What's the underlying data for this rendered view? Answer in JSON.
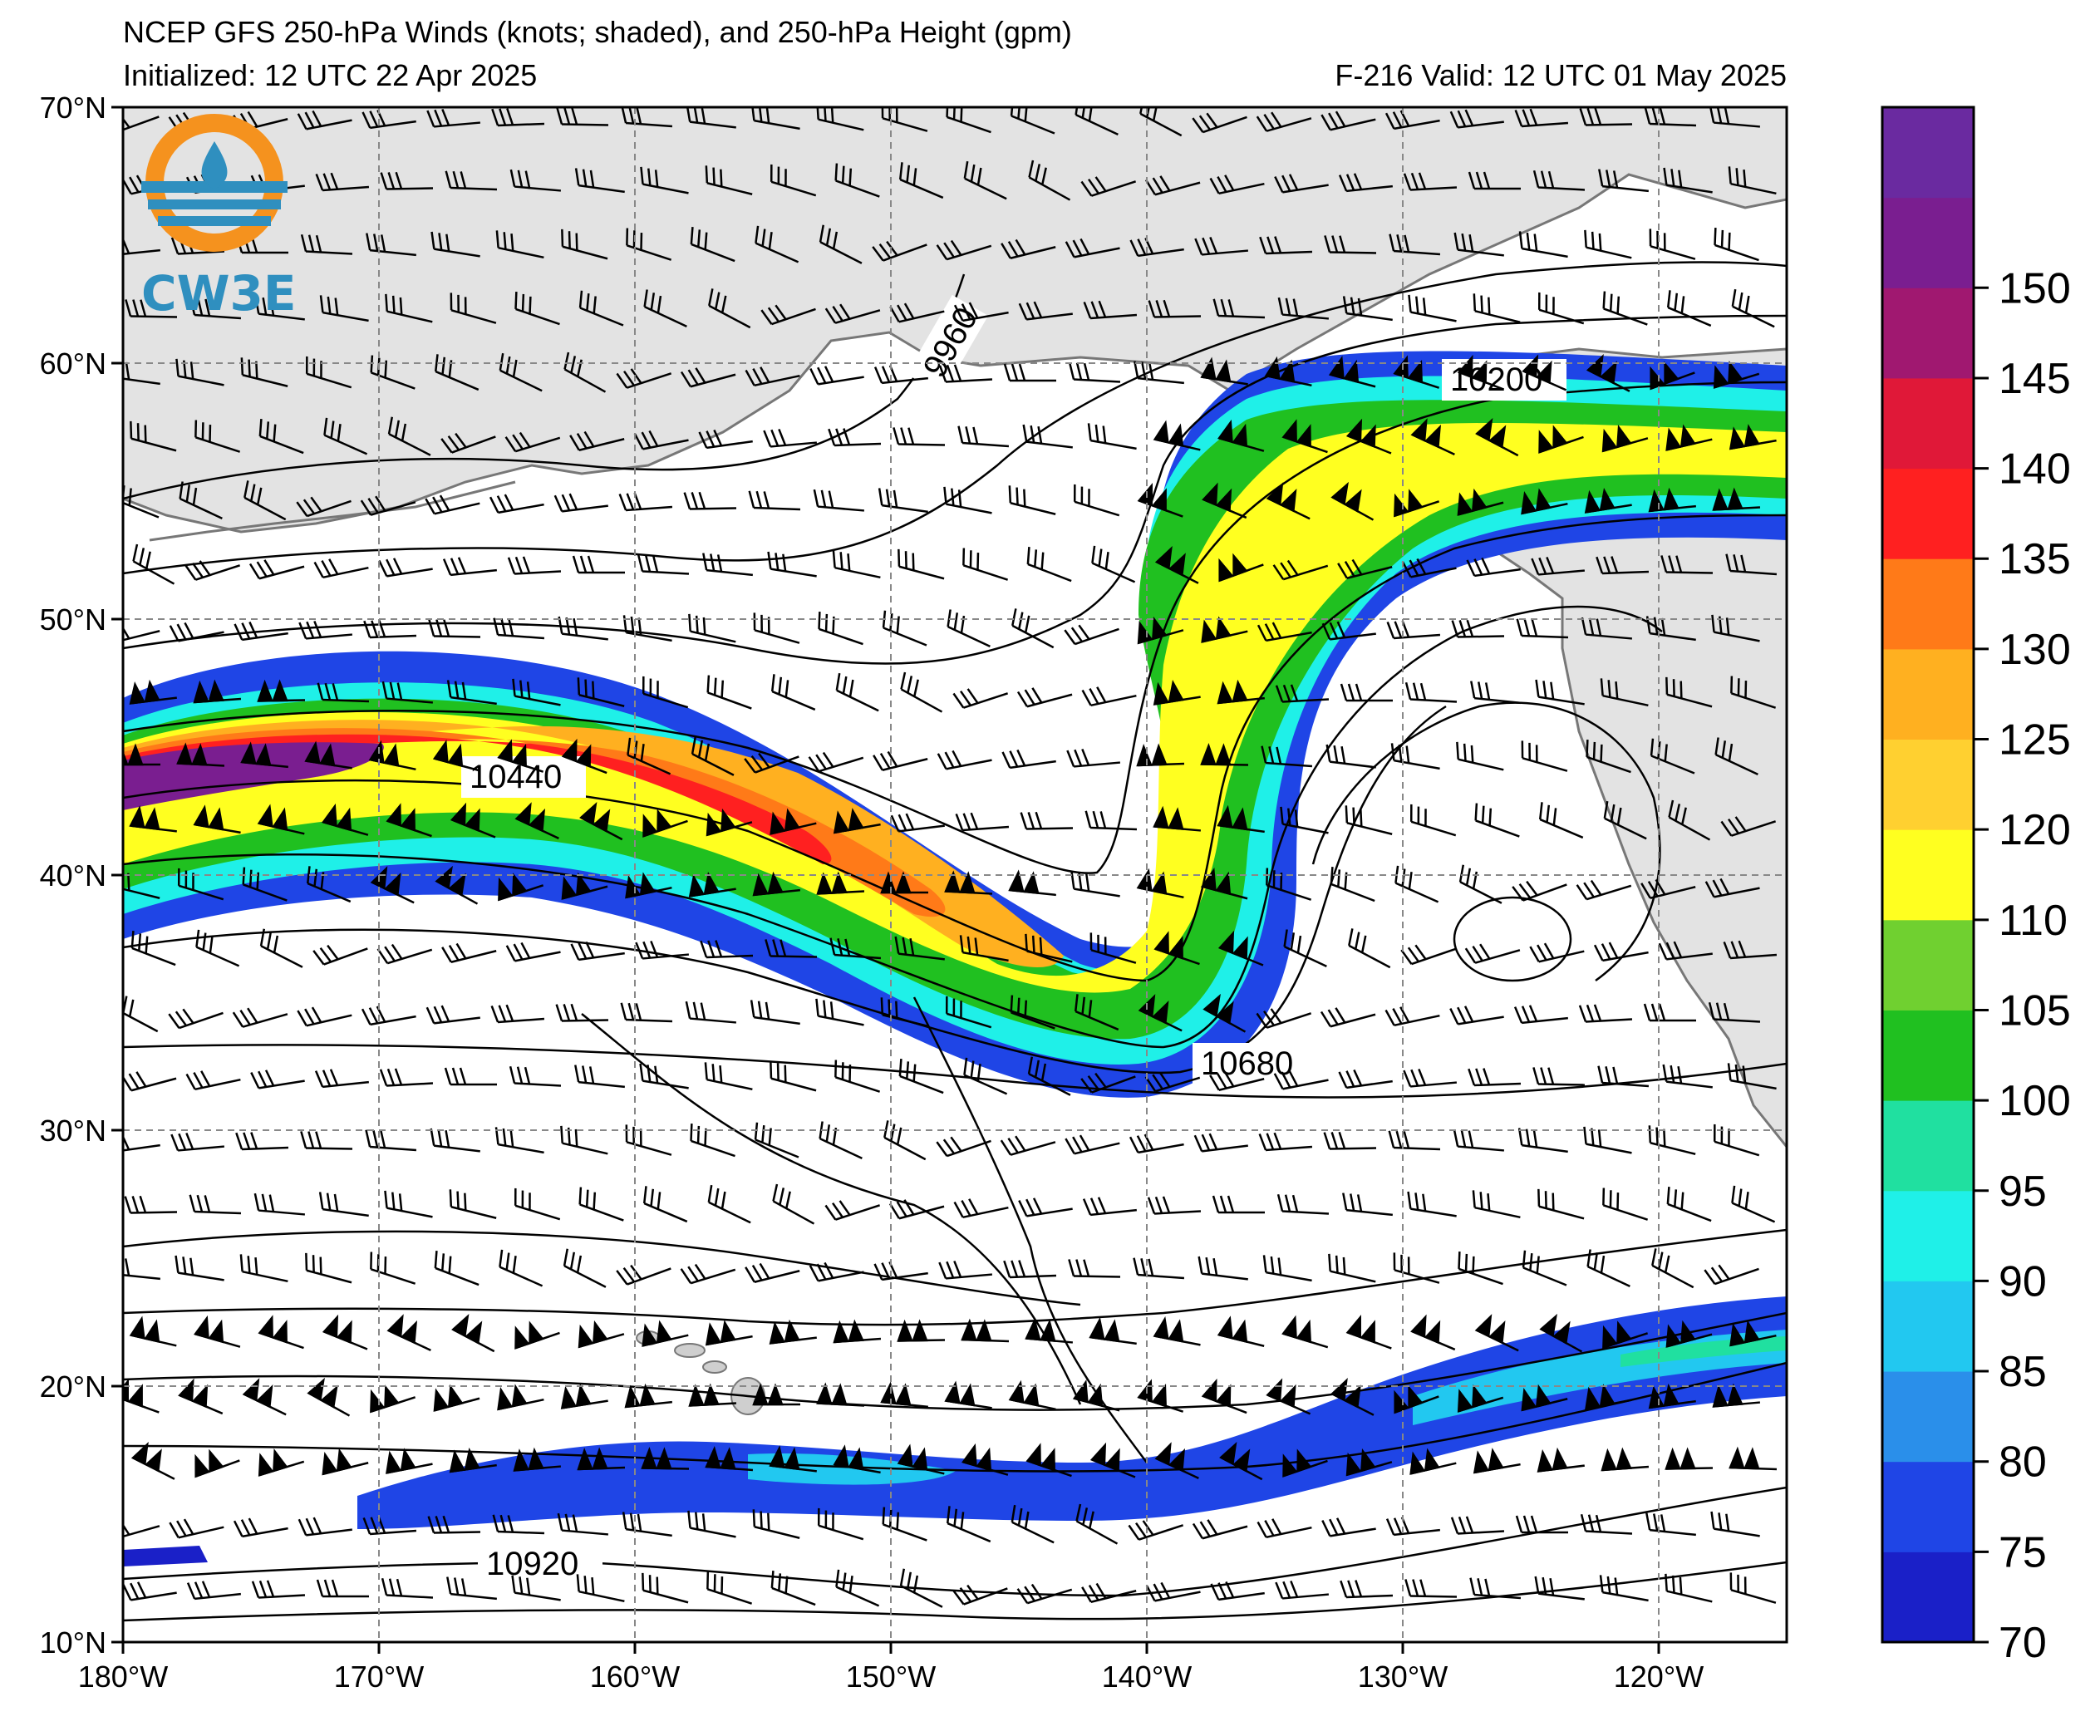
{
  "title": {
    "line1": "NCEP GFS 250-hPa Winds (knots; shaded), and 250-hPa Height (gpm)",
    "line2_left": "Initialized: 12 UTC 22 Apr 2025",
    "line2_right": "F-216  Valid: 12 UTC 01 May 2025"
  },
  "logo": {
    "text": "CW3E",
    "icon": "cw3e-logo-icon"
  },
  "axes": {
    "lon_labels": [
      "180°W",
      "170°W",
      "160°W",
      "150°W",
      "140°W",
      "130°W",
      "120°W"
    ],
    "lat_labels": [
      "70°N",
      "60°N",
      "50°N",
      "40°N",
      "30°N",
      "20°N",
      "10°N"
    ]
  },
  "contour_labels": [
    "9960",
    "10200",
    "10440",
    "10680",
    "10920"
  ],
  "colorbar": {
    "ticks": [
      "70",
      "75",
      "80",
      "85",
      "90",
      "95",
      "100",
      "105",
      "110",
      "120",
      "125",
      "130",
      "135",
      "140",
      "145",
      "150"
    ],
    "colors": [
      "#1a20c8",
      "#1f45e6",
      "#2a8fea",
      "#22c8f0",
      "#1ff0e8",
      "#20e0a0",
      "#20c020",
      "#70d030",
      "#ffff20",
      "#ffd030",
      "#ffb020",
      "#ff7a18",
      "#ff2020",
      "#e01838",
      "#a01870",
      "#7a1e90",
      "#6a2aa0"
    ]
  },
  "chart_data": {
    "type": "map",
    "variable": "250-hPa wind speed (knots) shaded, 250-hPa height contours (gpm)",
    "region": {
      "lon_range": [
        -180,
        -115
      ],
      "lat_range": [
        10,
        70
      ]
    },
    "contour_levels_labeled": [
      9960,
      10200,
      10440,
      10680,
      10920
    ],
    "colorbar_range_knots": [
      70,
      155
    ]
  }
}
